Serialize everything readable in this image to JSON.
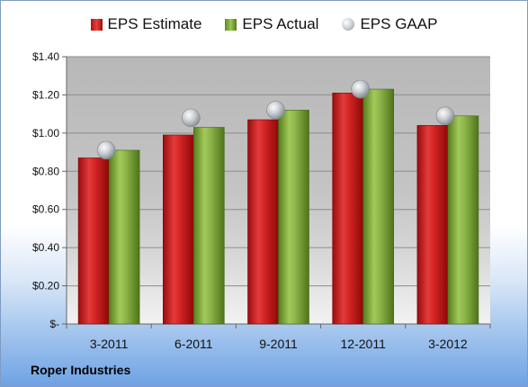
{
  "chart_data": {
    "type": "bar",
    "categories": [
      "3-2011",
      "6-2011",
      "9-2011",
      "12-2011",
      "3-2012"
    ],
    "series": [
      {
        "name": "EPS Estimate",
        "type": "bar",
        "values": [
          0.87,
          0.99,
          1.07,
          1.21,
          1.04
        ],
        "color": "#d42424"
      },
      {
        "name": "EPS Actual",
        "type": "bar",
        "values": [
          0.91,
          1.03,
          1.12,
          1.23,
          1.09
        ],
        "color": "#8db54a"
      },
      {
        "name": "EPS GAAP",
        "type": "marker",
        "values": [
          0.91,
          1.08,
          1.12,
          1.23,
          1.09
        ],
        "color": "#c0c5cc"
      }
    ],
    "ylim": [
      0,
      1.4
    ],
    "yticks": [
      0,
      0.2,
      0.4,
      0.6,
      0.8,
      1.0,
      1.2,
      1.4
    ],
    "ytick_labels": [
      "$-",
      "$0.20",
      "$0.40",
      "$0.60",
      "$0.80",
      "$1.00",
      "$1.20",
      "$1.40"
    ],
    "grid": true,
    "legend_position": "top"
  },
  "legend": {
    "estimate": "EPS Estimate",
    "actual": "EPS Actual",
    "gaap": "EPS GAAP"
  },
  "company": "Roper Industries"
}
